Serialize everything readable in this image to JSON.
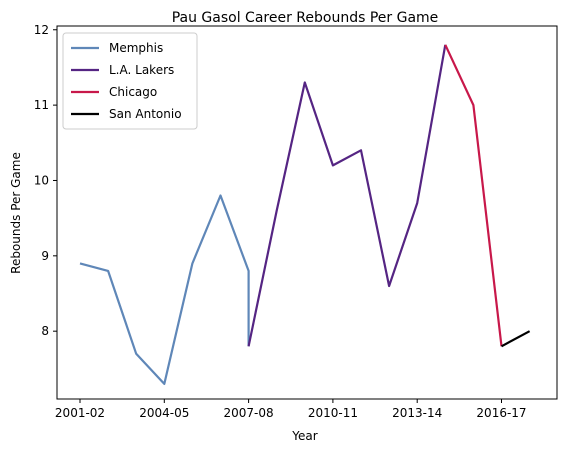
{
  "chart_data": {
    "type": "line",
    "title": "Pau Gasol Career Rebounds Per Game",
    "xlabel": "Year",
    "ylabel": "Rebounds Per Game",
    "x": [
      "2001-02",
      "2002-03",
      "2003-04",
      "2004-05",
      "2005-06",
      "2006-07",
      "2007-08",
      "2008-09",
      "2009-10",
      "2010-11",
      "2011-12",
      "2012-13",
      "2013-14",
      "2014-15",
      "2015-16",
      "2016-17",
      "2017-18"
    ],
    "xticks": [
      "2001-02",
      "2004-05",
      "2007-08",
      "2010-11",
      "2013-14",
      "2016-17"
    ],
    "yticks": [
      8,
      9,
      10,
      11,
      12
    ],
    "ylim": [
      7.1,
      12.05
    ],
    "grid": false,
    "legend_position": "top-left",
    "series": [
      {
        "name": "Memphis",
        "color": "#5f87b8",
        "points": [
          [
            "2001-02",
            8.9
          ],
          [
            "2002-03",
            8.8
          ],
          [
            "2003-04",
            7.7
          ],
          [
            "2004-05",
            7.3
          ],
          [
            "2005-06",
            8.9
          ],
          [
            "2006-07",
            9.8
          ],
          [
            "2007-08",
            8.8
          ],
          [
            "2007-08",
            7.8
          ]
        ]
      },
      {
        "name": "L.A. Lakers",
        "color": "#552583",
        "points": [
          [
            "2007-08",
            7.8
          ],
          [
            "2008-09",
            9.6
          ],
          [
            "2009-10",
            11.3
          ],
          [
            "2010-11",
            10.2
          ],
          [
            "2011-12",
            10.4
          ],
          [
            "2012-13",
            8.6
          ],
          [
            "2013-14",
            9.7
          ],
          [
            "2014-15",
            11.8
          ]
        ]
      },
      {
        "name": "Chicago",
        "color": "#c8184a",
        "points": [
          [
            "2014-15",
            11.8
          ],
          [
            "2015-16",
            11.0
          ],
          [
            "2016-17",
            7.8
          ]
        ]
      },
      {
        "name": "San Antonio",
        "color": "#000000",
        "points": [
          [
            "2016-17",
            7.8
          ],
          [
            "2017-18",
            8.0
          ]
        ]
      }
    ]
  }
}
